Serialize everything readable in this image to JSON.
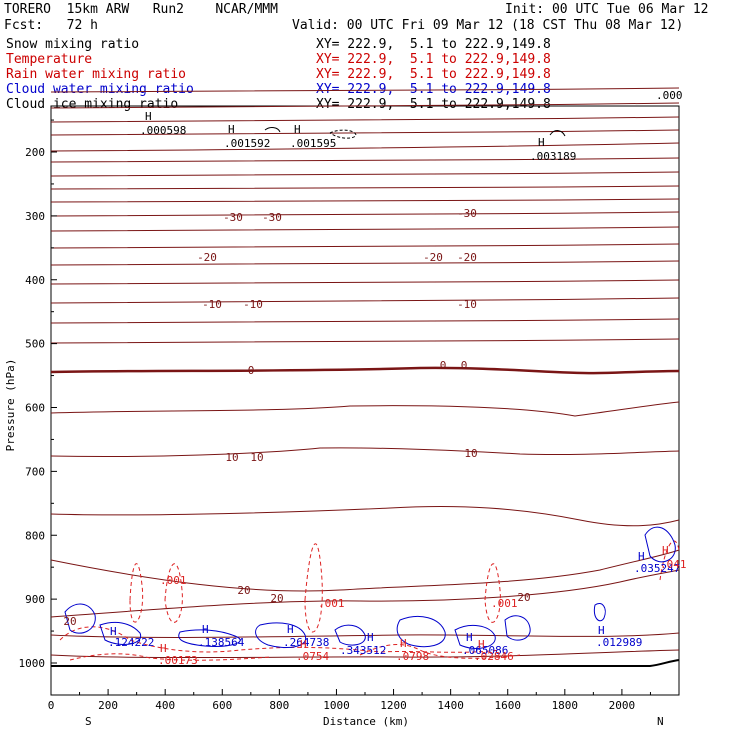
{
  "header": {
    "title": "TORERO  15km ARW   Run2    NCAR/MMM",
    "init": "Init: 00 UTC Tue 06 Mar 12",
    "fcst": "Fcst:   72 h",
    "valid": "Valid: 00 UTC Fri 09 Mar 12 (18 CST Thu 08 Mar 12)"
  },
  "legend": [
    {
      "name": "Snow mixing ratio",
      "xy": "XY= 222.9,  5.1 to 222.9,149.8",
      "color": "#000000"
    },
    {
      "name": "Temperature",
      "xy": "XY= 222.9,  5.1 to 222.9,149.8",
      "color": "#cc0000"
    },
    {
      "name": "Rain water mixing ratio",
      "xy": "XY= 222.9,  5.1 to 222.9,149.8",
      "color": "#cc0000"
    },
    {
      "name": "Cloud water mixing ratio",
      "xy": "XY= 222.9,  5.1 to 222.9,149.8",
      "color": "#0000cc"
    },
    {
      "name": "Cloud ice mixing ratio",
      "xy": "XY= 222.9,  5.1 to 222.9,149.8",
      "color": "#000000"
    }
  ],
  "chart_data": {
    "type": "cross-section contour",
    "xlabel": "Distance (km)",
    "ylabel": "Pressure (hPa)",
    "x_ticks": [
      "0",
      "200",
      "400",
      "600",
      "800",
      "1000",
      "1200",
      "1400",
      "1600",
      "1800",
      "2000"
    ],
    "y_ticks": [
      "200",
      "300",
      "400",
      "500",
      "600",
      "700",
      "800",
      "900",
      "1000"
    ],
    "xlim": [
      0,
      2200
    ],
    "ylim_hPa": [
      100,
      1030
    ],
    "end_labels": {
      "left": "S",
      "right": "N"
    },
    "temperature_contour_labels": [
      "-30",
      "-30",
      "-30",
      "-20",
      "-20",
      "-20",
      "-10",
      "-10",
      "-10",
      "0",
      "0",
      "0",
      "10",
      "10",
      "10",
      "20",
      "20",
      "20",
      "20"
    ],
    "maxima_labels": [
      {
        "mark": "H",
        "value": ".000598"
      },
      {
        "mark": "H",
        "value": ".001592"
      },
      {
        "mark": "H",
        "value": ".001595"
      },
      {
        "mark": "H",
        "value": ".003189"
      },
      {
        "mark": "H",
        "value": ".124222"
      },
      {
        "mark": "H",
        "value": ".138564"
      },
      {
        "mark": "H",
        "value": ".264738"
      },
      {
        "mark": "H",
        "value": ".343512"
      },
      {
        "mark": "H",
        "value": ".065086"
      },
      {
        "mark": "H",
        "value": ".012989"
      },
      {
        "mark": "H",
        "value": ".035247"
      },
      {
        "mark": "H",
        "value": ".00173"
      },
      {
        "mark": "H",
        "value": ".0754"
      },
      {
        "mark": "H",
        "value": ".0798"
      },
      {
        "mark": "H",
        "value": ".02846"
      },
      {
        "mark": "H",
        "value": ".041"
      }
    ],
    "rain_contour_labels": [
      ".001",
      ".001",
      ".001"
    ],
    "top_right_label": ".000"
  }
}
